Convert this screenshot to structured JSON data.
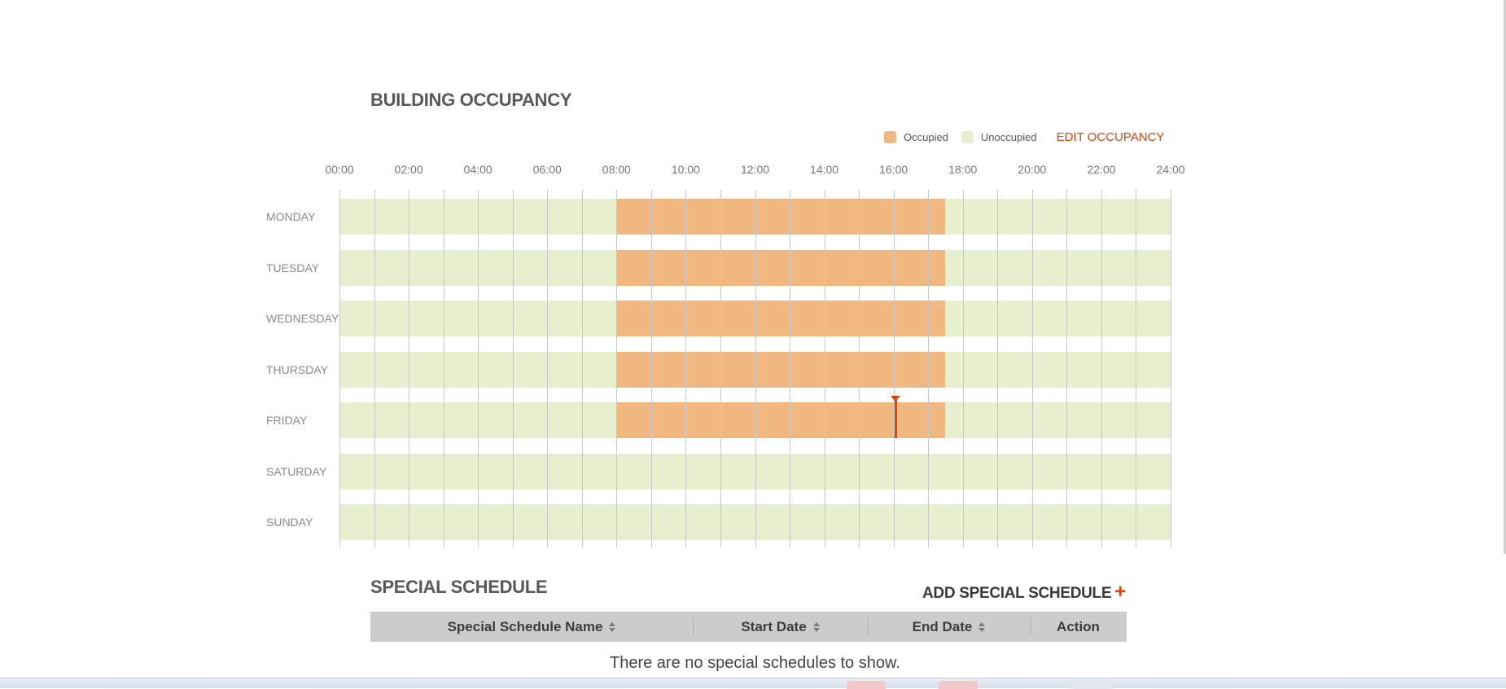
{
  "page_title": "BUILDING OCCUPANCY",
  "legend": {
    "occupied_label": "Occupied",
    "unoccupied_label": "Unoccupied",
    "edit_label": "EDIT OCCUPANCY"
  },
  "colors": {
    "occupied": "#f0b880",
    "unoccupied": "#e6f0cf",
    "accent": "#d9440f"
  },
  "schedule": {
    "hour_labels": [
      "00:00",
      "02:00",
      "04:00",
      "06:00",
      "08:00",
      "10:00",
      "12:00",
      "14:00",
      "16:00",
      "18:00",
      "20:00",
      "22:00",
      "24:00"
    ],
    "days": [
      {
        "label": "MONDAY",
        "occupied": [
          8,
          17.5
        ]
      },
      {
        "label": "TUESDAY",
        "occupied": [
          8,
          17.5
        ]
      },
      {
        "label": "WEDNESDAY",
        "occupied": [
          8,
          17.5
        ]
      },
      {
        "label": "THURSDAY",
        "occupied": [
          8,
          17.5
        ]
      },
      {
        "label": "FRIDAY",
        "occupied": [
          8,
          17.5
        ]
      },
      {
        "label": "SATURDAY",
        "occupied": null
      },
      {
        "label": "SUNDAY",
        "occupied": null
      }
    ],
    "current_time": {
      "day": "FRIDAY",
      "hour": 16.05
    }
  },
  "special_schedule": {
    "title": "SPECIAL SCHEDULE",
    "add_label": "ADD SPECIAL SCHEDULE",
    "add_icon": "+",
    "columns": [
      "Special Schedule Name",
      "Start Date",
      "End Date",
      "Action"
    ],
    "empty_message": "There are no special schedules to show."
  }
}
